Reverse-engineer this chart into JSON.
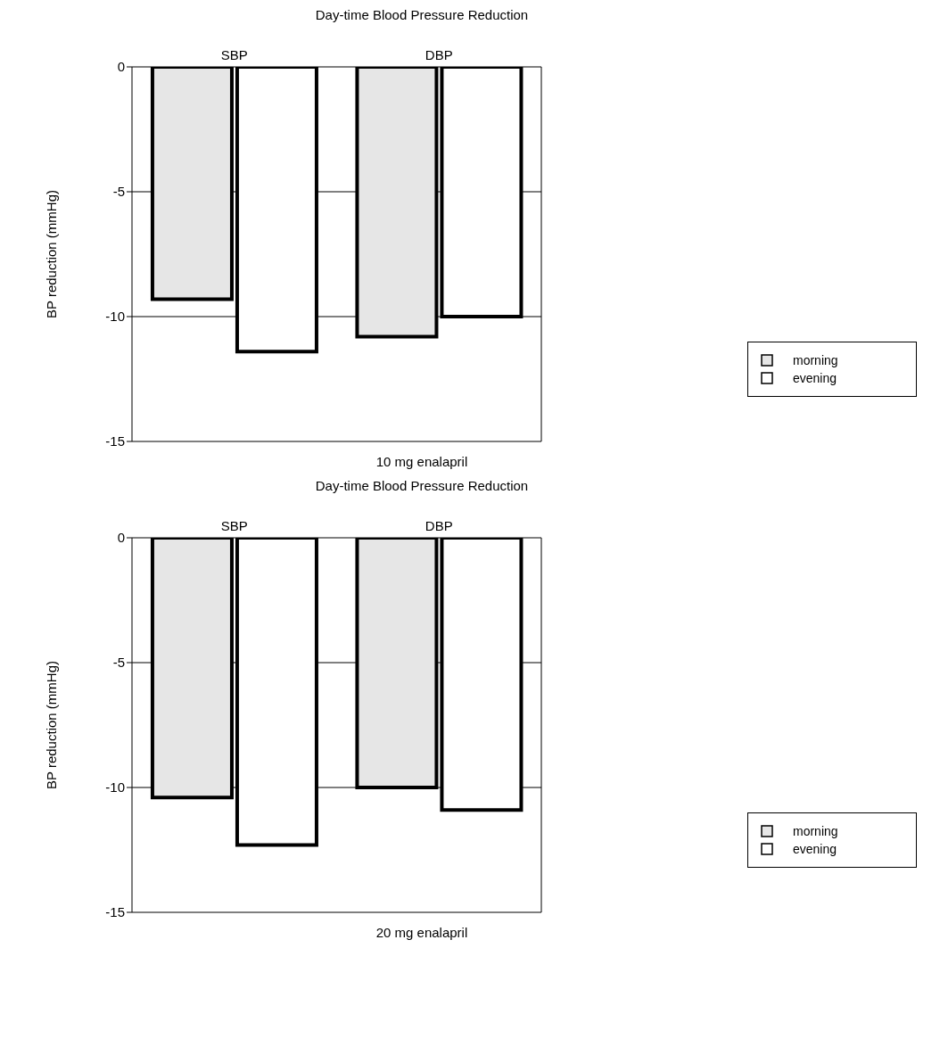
{
  "chart_data": [
    {
      "type": "bar",
      "title": "Day-time Blood Pressure Reduction",
      "categories": [
        "SBP",
        "DBP"
      ],
      "ylabel": "BP reduction (mmHg)",
      "xlabel": "10 mg enalapril",
      "series": [
        {
          "name": "morning",
          "color": "#e6e6e6",
          "values": [
            -9.3,
            -10.8
          ]
        },
        {
          "name": "evening",
          "color": "#ffffff",
          "values": [
            -11.4,
            -10.0
          ]
        }
      ],
      "ylim": [
        -15,
        0
      ],
      "yticks": [
        -15,
        -10,
        -5,
        0
      ],
      "grid": "y",
      "legend": "bottom right"
    },
    {
      "type": "bar",
      "title": "Day-time Blood Pressure Reduction",
      "categories": [
        "SBP",
        "DBP"
      ],
      "ylabel": "BP reduction (mmHg)",
      "xlabel": "20 mg enalapril",
      "series": [
        {
          "name": "morning",
          "color": "#e6e6e6",
          "values": [
            -10.4,
            -10.0
          ]
        },
        {
          "name": "evening",
          "color": "#ffffff",
          "values": [
            -12.3,
            -10.9
          ]
        }
      ],
      "ylim": [
        -15,
        0
      ],
      "yticks": [
        -15,
        -10,
        -5,
        0
      ],
      "grid": "y",
      "legend": "bottom right"
    }
  ]
}
